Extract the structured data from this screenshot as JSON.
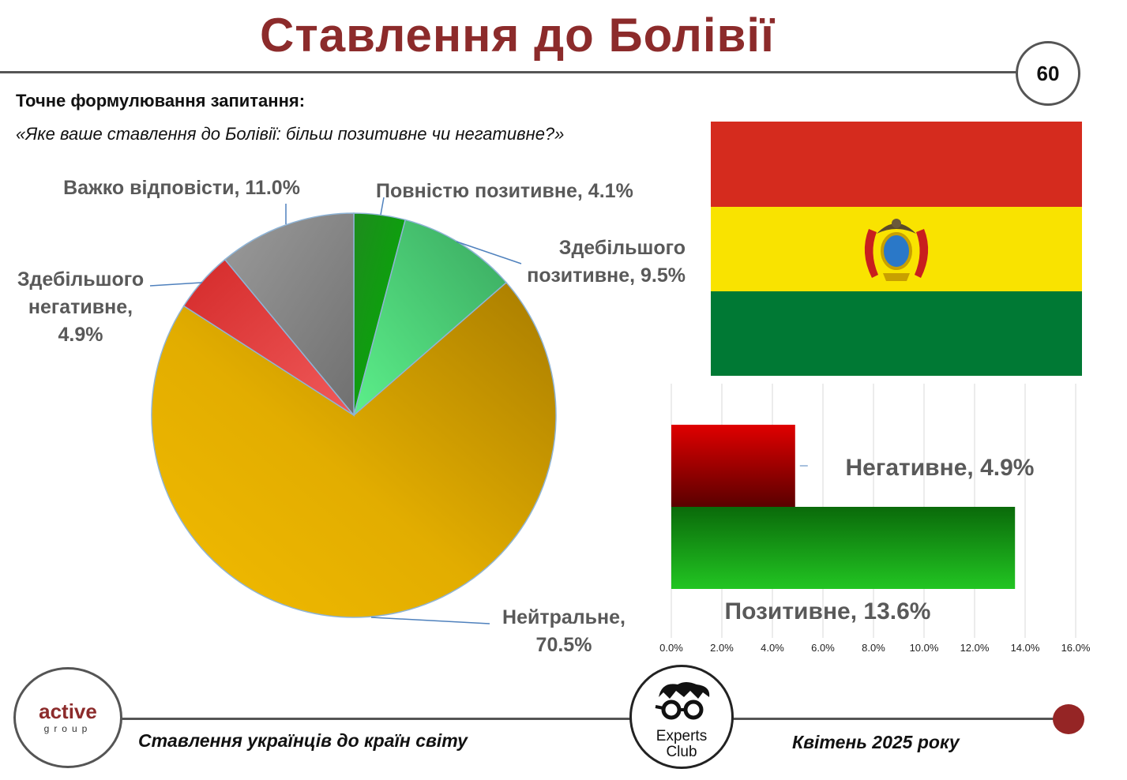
{
  "header": {
    "title": "Ставлення до Болівії",
    "page_number": "60"
  },
  "question": {
    "label": "Точне формулювання запитання:",
    "text": "«Яке ваше ставлення до Болівії: більш позитивне чи негативне?»"
  },
  "footer": {
    "left_text": "Ставлення українців до країн світу",
    "right_text": "Квітень 2025 року",
    "logo_active": "active",
    "logo_active_sub": "group",
    "logo_experts_line1": "Experts",
    "logo_experts_line2": "Club"
  },
  "flag": {
    "stripes": [
      "#d52b1e",
      "#f9e300",
      "#007934"
    ]
  },
  "chart_data": [
    {
      "type": "pie",
      "slices": [
        {
          "label_lines": [
            "Повністю позитивне, 4.1%"
          ],
          "value": 4.1,
          "color": "#1f9a1f"
        },
        {
          "label_lines": [
            "Здебільшого",
            "позитивне, 9.5%"
          ],
          "value": 9.5,
          "color": "#55d67a"
        },
        {
          "label_lines": [
            "Нейтральне,",
            "70.5%"
          ],
          "value": 70.5,
          "color": "#e8b400"
        },
        {
          "label_lines": [
            "Здебільшого",
            "негативне,",
            "4.9%"
          ],
          "value": 4.9,
          "color": "#e03c3c"
        },
        {
          "label_lines": [
            "Важко відповісти, 11.0%"
          ],
          "value": 11.0,
          "color": "#8a8a8a"
        }
      ]
    },
    {
      "type": "bar",
      "orientation": "horizontal",
      "bars": [
        {
          "label": "Негативне, 4.9%",
          "value": 4.9,
          "color": "#c40000"
        },
        {
          "label": "Позитивне, 13.6%",
          "value": 13.6,
          "color": "#1fb51f"
        }
      ],
      "xlim": [
        0,
        16
      ],
      "x_ticks": [
        "0.0%",
        "2.0%",
        "4.0%",
        "6.0%",
        "8.0%",
        "10.0%",
        "12.0%",
        "14.0%",
        "16.0%"
      ],
      "grid": true
    }
  ]
}
